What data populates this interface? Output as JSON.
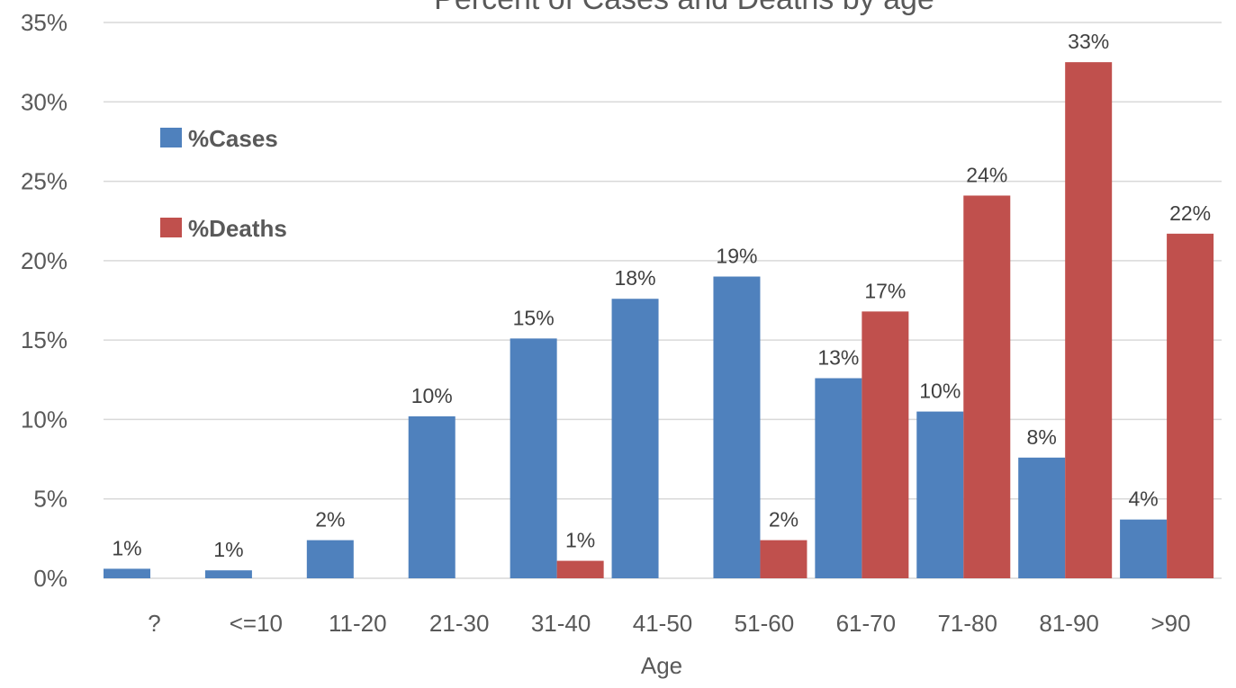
{
  "chart_data": {
    "type": "bar",
    "title": "Percent of Cases and Deaths by age",
    "xlabel": "Age",
    "ylabel": "",
    "ylim": [
      0,
      35
    ],
    "yticks": [
      0,
      5,
      10,
      15,
      20,
      25,
      30,
      35
    ],
    "ytick_labels": [
      "0%",
      "5%",
      "10%",
      "15%",
      "20%",
      "25%",
      "30%",
      "35%"
    ],
    "grid": true,
    "legend_position": "left",
    "categories": [
      "?",
      "<=10",
      "11-20",
      "21-30",
      "31-40",
      "41-50",
      "51-60",
      "61-70",
      "71-80",
      "81-90",
      ">90"
    ],
    "series": [
      {
        "name": "%Cases",
        "color": "#4f81bd",
        "values": [
          0.6,
          0.5,
          2.4,
          10.2,
          15.1,
          17.6,
          19.0,
          12.6,
          10.5,
          7.6,
          3.7
        ],
        "labels": [
          "1%",
          "1%",
          "2%",
          "10%",
          "15%",
          "18%",
          "19%",
          "13%",
          "10%",
          "8%",
          "4%"
        ]
      },
      {
        "name": "%Deaths",
        "color": "#c0504d",
        "values": [
          0,
          0,
          0,
          0,
          1.1,
          0,
          2.4,
          16.8,
          24.1,
          32.5,
          21.7
        ],
        "labels": [
          "",
          "",
          "",
          "",
          "1%",
          "",
          "2%",
          "17%",
          "24%",
          "33%",
          "22%"
        ]
      }
    ]
  }
}
